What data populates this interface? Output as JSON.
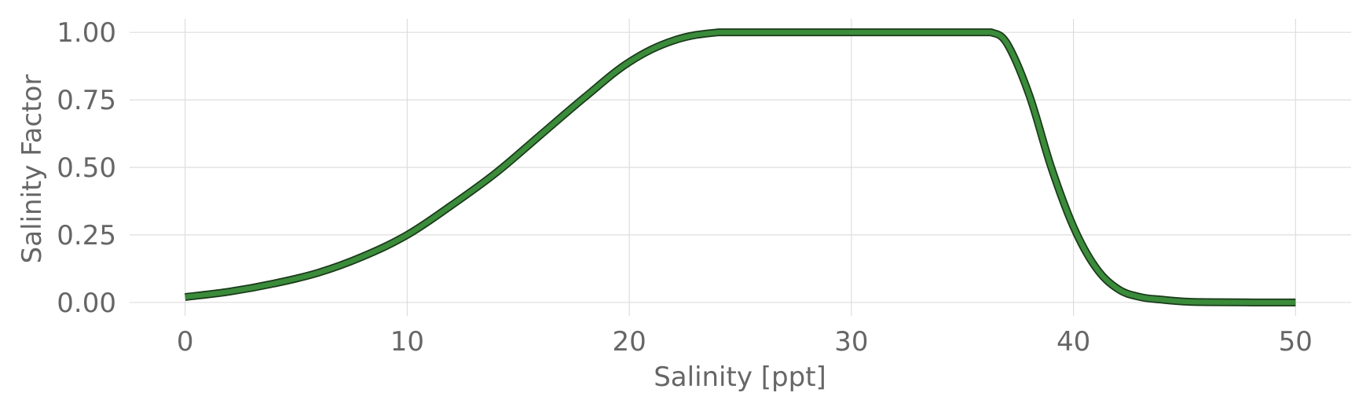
{
  "chart_data": {
    "type": "line",
    "xlabel": "Salinity [ppt]",
    "ylabel": "Salinity Factor",
    "xlim": [
      -2.5,
      52.5
    ],
    "ylim": [
      -0.05,
      1.05
    ],
    "x_ticks": [
      0,
      10,
      20,
      30,
      40,
      50
    ],
    "x_tick_labels": [
      "0",
      "10",
      "20",
      "30",
      "40",
      "50"
    ],
    "y_ticks": [
      0.0,
      0.25,
      0.5,
      0.75,
      1.0
    ],
    "y_tick_labels": [
      "0.00",
      "0.25",
      "0.50",
      "0.75",
      "1.00"
    ],
    "grid": true,
    "series": [
      {
        "color": "#3a8b3a",
        "edge_color": "#1a3a1a",
        "x": [
          0,
          2,
          4,
          6,
          8,
          10,
          12,
          14,
          16,
          18,
          20,
          22,
          24,
          26,
          28,
          30,
          32,
          34,
          36,
          36.3,
          37,
          38,
          39,
          40,
          41,
          42,
          43,
          44,
          45,
          46,
          48,
          50
        ],
        "y": [
          0.02,
          0.04,
          0.07,
          0.11,
          0.17,
          0.25,
          0.36,
          0.48,
          0.62,
          0.76,
          0.89,
          0.97,
          1.0,
          1.0,
          1.0,
          1.0,
          1.0,
          1.0,
          1.0,
          1.0,
          0.96,
          0.77,
          0.5,
          0.28,
          0.13,
          0.05,
          0.02,
          0.01,
          0.003,
          0.001,
          0.0,
          0.0
        ]
      }
    ]
  }
}
